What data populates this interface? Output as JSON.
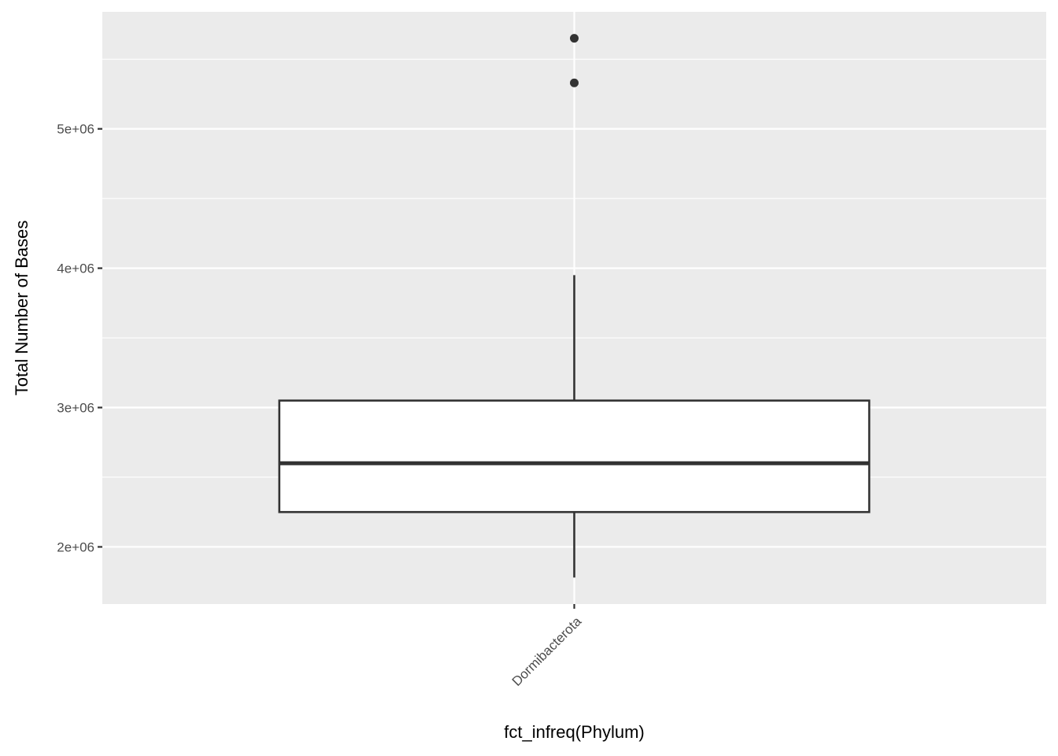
{
  "chart_data": {
    "type": "box",
    "xlabel": "fct_infreq(Phylum)",
    "ylabel": "Total Number of Bases",
    "categories": [
      "Dormibacterota"
    ],
    "boxes": [
      {
        "category": "Dormibacterota",
        "lower_whisker": 1780000,
        "q1": 2250000,
        "median": 2600000,
        "q3": 3050000,
        "upper_whisker": 3950000,
        "outliers": [
          5330000,
          5650000
        ]
      }
    ],
    "ylim": [
      1590000,
      5840000
    ],
    "y_ticks": [
      2000000,
      3000000,
      4000000,
      5000000
    ],
    "y_tick_labels": [
      "2e+06",
      "3e+06",
      "4e+06",
      "5e+06"
    ],
    "y_minor_ticks": [
      2500000,
      3500000,
      4500000,
      5500000
    ],
    "grid": true,
    "colors": {
      "panel_background": "#ebebeb",
      "grid": "#ffffff",
      "box_fill": "#ffffff",
      "box_stroke": "#333333",
      "outlier": "#333333",
      "tick_text": "#4d4d4d"
    }
  }
}
